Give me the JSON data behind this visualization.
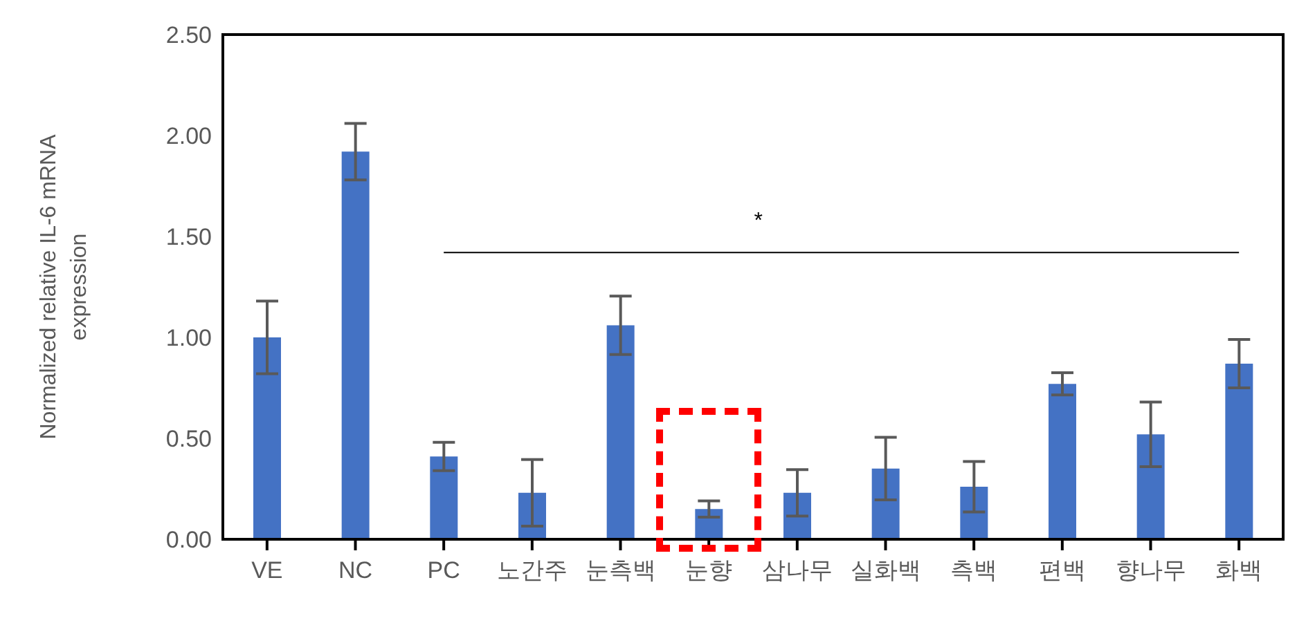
{
  "chart_data": {
    "type": "bar",
    "ylabel": "Normalized relative IL-6 mRNA expression",
    "categories": [
      "VE",
      "NC",
      "PC",
      "노간주",
      "눈측백",
      "눈향",
      "삼나무",
      "실화백",
      "측백",
      "편백",
      "향나무",
      "화백"
    ],
    "series": [
      {
        "color": "#4472c4",
        "values": [
          1.0,
          1.92,
          0.41,
          0.23,
          1.06,
          0.15,
          0.23,
          0.35,
          0.26,
          0.77,
          0.52,
          0.87
        ],
        "errors": [
          0.18,
          0.14,
          0.07,
          0.165,
          0.145,
          0.04,
          0.115,
          0.155,
          0.125,
          0.055,
          0.16,
          0.12
        ]
      },
      {
        "type": "line",
        "color": "#000000",
        "values": [
          null,
          null,
          1.42,
          1.42,
          1.42,
          1.42,
          1.42,
          1.42,
          1.42,
          1.42,
          1.42,
          1.42
        ]
      }
    ],
    "marker": "none",
    "ylim": [
      0,
      2.5
    ],
    "yticks": [
      {
        "value": 0,
        "label": "0.00"
      },
      {
        "value": 0.5,
        "label": "0.50"
      },
      {
        "value": 1,
        "label": "1.00"
      },
      {
        "value": 1.5,
        "label": "1.50"
      },
      {
        "value": 2,
        "label": "2.00"
      },
      {
        "value": 2.5,
        "label": "2.50"
      }
    ],
    "grid": false,
    "legend": false,
    "annotations": [
      "*"
    ]
  }
}
